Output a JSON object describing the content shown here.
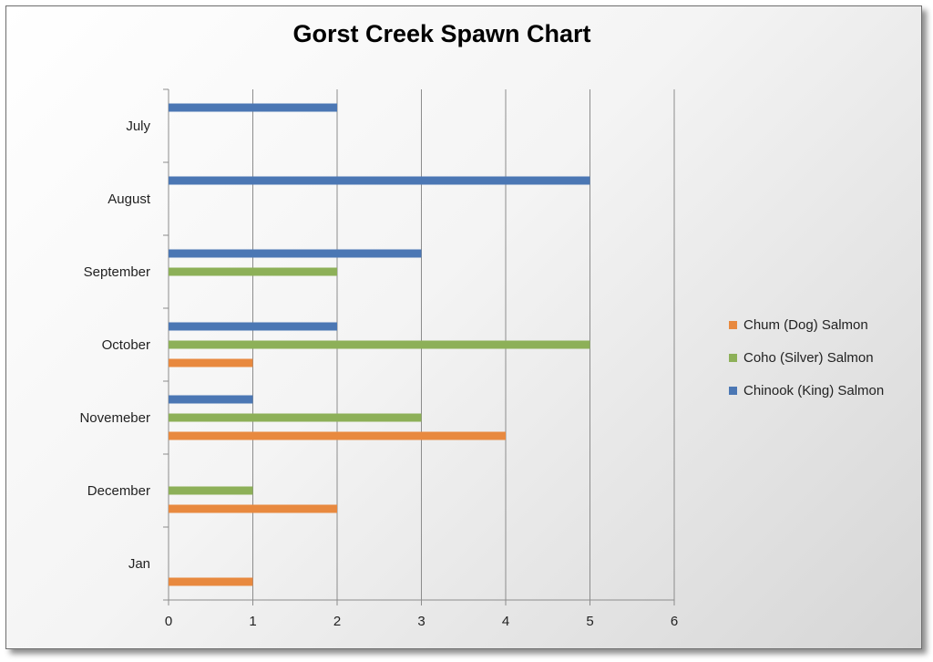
{
  "chart_data": {
    "type": "bar",
    "orientation": "horizontal",
    "title": "Gorst Creek Spawn Chart",
    "categories": [
      "Jan",
      "December",
      "Novemeber",
      "October",
      "September",
      "August",
      "July"
    ],
    "series": [
      {
        "name": "Chum (Dog) Salmon",
        "color": "#E8893F",
        "values": [
          1,
          2,
          4,
          1,
          0,
          0,
          0
        ]
      },
      {
        "name": "Coho (Silver) Salmon",
        "color": "#8DB058",
        "values": [
          0,
          1,
          3,
          5,
          2,
          0,
          0
        ]
      },
      {
        "name": "Chinook (King) Salmon",
        "color": "#4B77B4",
        "values": [
          0,
          0,
          1,
          2,
          3,
          5,
          2
        ]
      }
    ],
    "xlim": [
      0,
      6
    ],
    "xticks": [
      "0",
      "1",
      "2",
      "3",
      "4",
      "5",
      "6"
    ],
    "grid": true,
    "legend_position": "right"
  }
}
